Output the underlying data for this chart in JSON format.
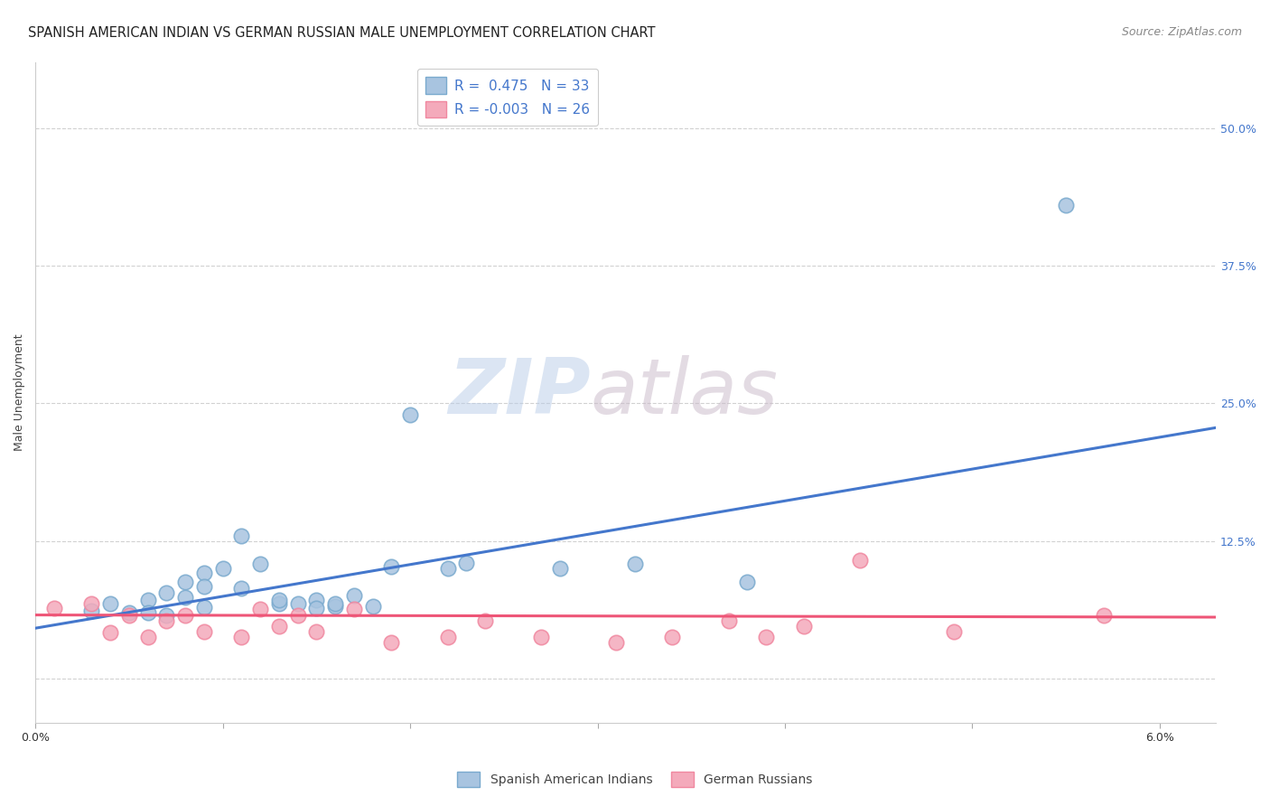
{
  "title": "SPANISH AMERICAN INDIAN VS GERMAN RUSSIAN MALE UNEMPLOYMENT CORRELATION CHART",
  "source": "Source: ZipAtlas.com",
  "ylabel": "Male Unemployment",
  "xlim": [
    0.0,
    0.063
  ],
  "ylim": [
    -0.04,
    0.56
  ],
  "yticks": [
    0.0,
    0.125,
    0.25,
    0.375,
    0.5
  ],
  "ytick_labels": [
    "",
    "12.5%",
    "25.0%",
    "37.5%",
    "50.0%"
  ],
  "xticks": [
    0.0,
    0.01,
    0.02,
    0.03,
    0.04,
    0.05,
    0.06
  ],
  "xtick_labels": [
    "0.0%",
    "",
    "",
    "",
    "",
    "",
    "6.0%"
  ],
  "watermark_zip": "ZIP",
  "watermark_atlas": "atlas",
  "legend1_label": "R =  0.475   N = 33",
  "legend2_label": "R = -0.003   N = 26",
  "blue_fill": "#A8C4E0",
  "blue_edge": "#7AAACE",
  "pink_fill": "#F4AABB",
  "pink_edge": "#F088A0",
  "blue_line_color": "#4477CC",
  "pink_line_color": "#EE5577",
  "blue_scatter_x": [
    0.003,
    0.004,
    0.005,
    0.006,
    0.006,
    0.007,
    0.007,
    0.008,
    0.008,
    0.009,
    0.009,
    0.009,
    0.01,
    0.011,
    0.011,
    0.012,
    0.013,
    0.013,
    0.014,
    0.015,
    0.015,
    0.016,
    0.016,
    0.017,
    0.018,
    0.019,
    0.02,
    0.022,
    0.023,
    0.028,
    0.032,
    0.038,
    0.055
  ],
  "blue_scatter_y": [
    0.062,
    0.068,
    0.06,
    0.072,
    0.06,
    0.078,
    0.058,
    0.088,
    0.074,
    0.096,
    0.084,
    0.065,
    0.1,
    0.13,
    0.082,
    0.104,
    0.068,
    0.072,
    0.068,
    0.072,
    0.064,
    0.066,
    0.068,
    0.076,
    0.066,
    0.102,
    0.24,
    0.1,
    0.105,
    0.1,
    0.104,
    0.088,
    0.43
  ],
  "pink_scatter_x": [
    0.001,
    0.003,
    0.004,
    0.005,
    0.006,
    0.007,
    0.008,
    0.009,
    0.011,
    0.012,
    0.013,
    0.014,
    0.015,
    0.017,
    0.019,
    0.022,
    0.024,
    0.027,
    0.031,
    0.034,
    0.037,
    0.039,
    0.041,
    0.044,
    0.049,
    0.057
  ],
  "pink_scatter_y": [
    0.064,
    0.068,
    0.042,
    0.058,
    0.038,
    0.053,
    0.058,
    0.043,
    0.038,
    0.063,
    0.048,
    0.058,
    0.043,
    0.063,
    0.033,
    0.038,
    0.053,
    0.038,
    0.033,
    0.038,
    0.053,
    0.038,
    0.048,
    0.108,
    0.043,
    0.058
  ],
  "blue_line_x": [
    0.0,
    0.063
  ],
  "blue_line_y": [
    0.046,
    0.228
  ],
  "pink_line_x": [
    0.0,
    0.063
  ],
  "pink_line_y": [
    0.058,
    0.056
  ],
  "background_color": "#FFFFFF",
  "title_fontsize": 10.5,
  "axis_label_fontsize": 9,
  "tick_fontsize": 9,
  "source_fontsize": 9,
  "right_tick_color": "#4477CC",
  "grid_color": "#CCCCCC",
  "spine_color": "#CCCCCC"
}
